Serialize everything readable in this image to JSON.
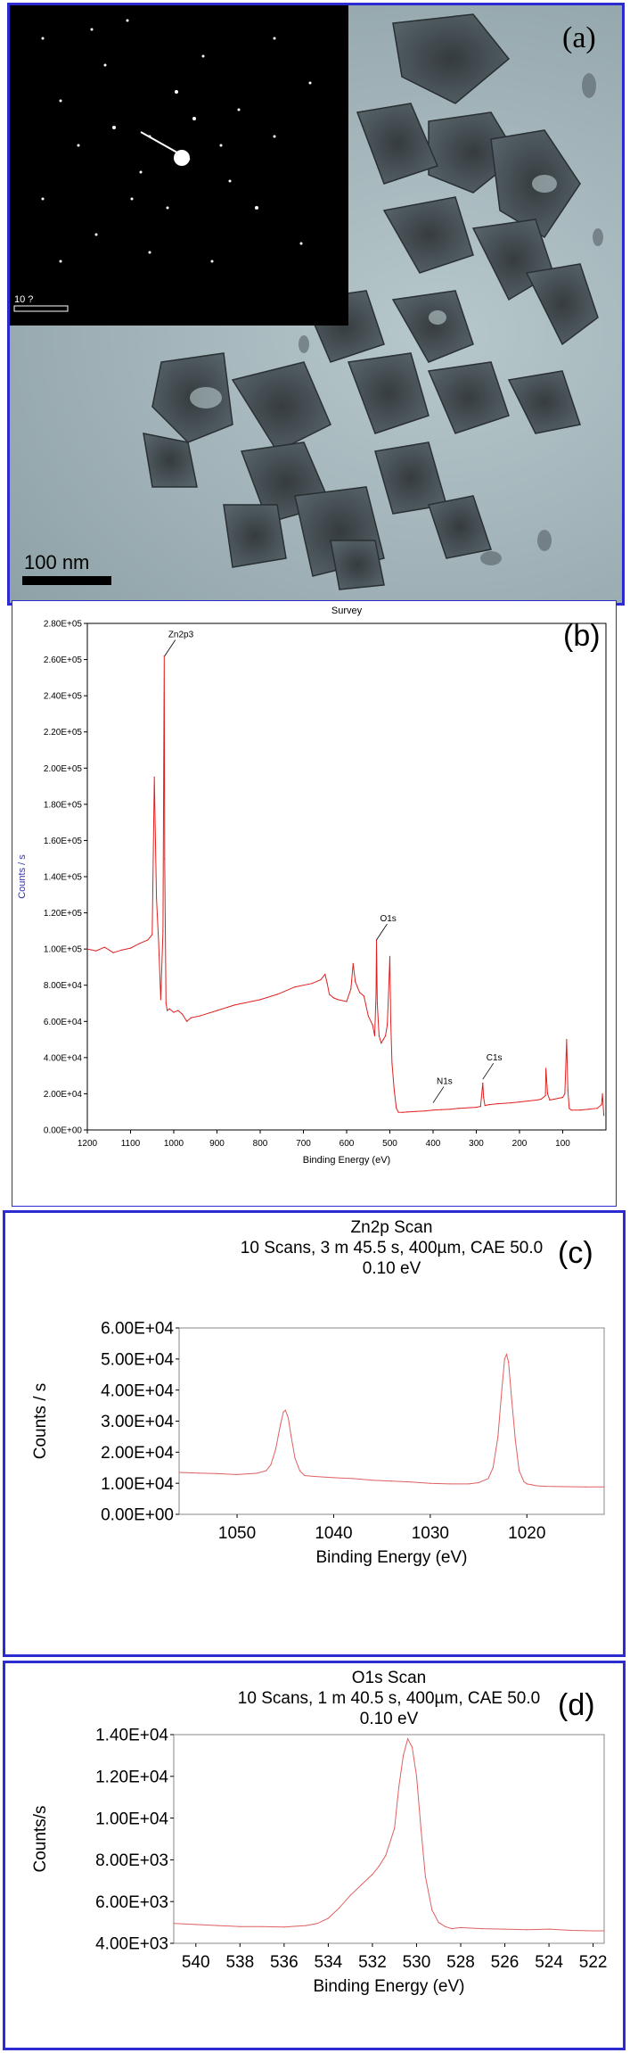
{
  "panel_a": {
    "label": "(a)",
    "scale_bar": "100 nm",
    "inset_scale": "10 ?"
  },
  "colors": {
    "border": "#2b2bd0",
    "trace": "#e02020",
    "trace_light": "#e06060"
  },
  "chart_data": [
    {
      "type": "line",
      "panel_label": "(b)",
      "title": "Survey",
      "xlabel": "Binding Energy (eV)",
      "ylabel": "Counts / s",
      "xlim": [
        1200,
        0
      ],
      "ylim": [
        0,
        280000
      ],
      "x_ticks": [
        "1200",
        "1100",
        "1000",
        "900",
        "800",
        "700",
        "600",
        "500",
        "400",
        "300",
        "200",
        "100"
      ],
      "y_ticks": [
        "0.00E+00",
        "2.00E+04",
        "4.00E+04",
        "6.00E+04",
        "8.00E+04",
        "1.00E+05",
        "1.20E+05",
        "1.40E+05",
        "1.60E+05",
        "1.80E+05",
        "2.00E+05",
        "2.20E+05",
        "2.40E+05",
        "2.60E+05",
        "2.80E+05"
      ],
      "annotations": [
        {
          "text": "Zn2p3",
          "x": 1021,
          "y": 262000
        },
        {
          "text": "O1s",
          "x": 531,
          "y": 105000
        },
        {
          "text": "N1s",
          "x": 400,
          "y": 15000
        },
        {
          "text": "C1s",
          "x": 285,
          "y": 28000
        }
      ],
      "series": [
        {
          "x": [
            1200,
            1180,
            1160,
            1140,
            1120,
            1100,
            1080,
            1060,
            1050,
            1045,
            1040,
            1035,
            1030,
            1025,
            1022,
            1021,
            1018,
            1015,
            1010,
            1000,
            990,
            980,
            970,
            960,
            940,
            900,
            860,
            800,
            760,
            720,
            680,
            660,
            650,
            645,
            640,
            630,
            620,
            600,
            590,
            585,
            580,
            575,
            570,
            560,
            550,
            540,
            535,
            532,
            531,
            529,
            525,
            520,
            515,
            510,
            506,
            503,
            500,
            498,
            495,
            490,
            485,
            480,
            470,
            460,
            440,
            420,
            400,
            380,
            360,
            340,
            300,
            290,
            285,
            283,
            280,
            270,
            250,
            220,
            200,
            180,
            160,
            150,
            140,
            139,
            135,
            130,
            120,
            100,
            95,
            91,
            88,
            85,
            80,
            60,
            40,
            20,
            10,
            8,
            5
          ],
          "y": [
            100000,
            99000,
            101000,
            98000,
            99500,
            100500,
            103000,
            105000,
            108000,
            195000,
            128000,
            104000,
            72000,
            110000,
            262000,
            150000,
            70000,
            66000,
            67000,
            65000,
            66000,
            64000,
            60000,
            62000,
            63000,
            66000,
            69000,
            72000,
            75000,
            79000,
            81000,
            83000,
            86000,
            81000,
            75000,
            73000,
            72000,
            71000,
            78000,
            92000,
            82000,
            79000,
            76000,
            74000,
            63000,
            58000,
            52000,
            75000,
            105000,
            70000,
            52000,
            48000,
            50000,
            52000,
            58000,
            75000,
            96000,
            60000,
            37000,
            22000,
            12000,
            9800,
            9700,
            9900,
            10200,
            10500,
            11000,
            11200,
            11500,
            12000,
            12500,
            13000,
            26000,
            18000,
            13500,
            14000,
            14500,
            15000,
            15500,
            16000,
            16500,
            17000,
            19000,
            34000,
            20000,
            16500,
            17000,
            18000,
            20000,
            50000,
            22000,
            12000,
            11000,
            11000,
            11500,
            12000,
            14000,
            20000,
            8000
          ]
        }
      ]
    },
    {
      "type": "line",
      "panel_label": "(c)",
      "title": "Zn2p Scan",
      "subtitle": "10 Scans,  3 m 45.5 s,  400µm,  CAE 50.0",
      "subtitle2": "0.10 eV",
      "xlabel": "Binding Energy (eV)",
      "ylabel": "Counts / s",
      "xlim": [
        1056,
        1012
      ],
      "ylim": [
        0,
        60000
      ],
      "x_ticks": [
        "1050",
        "1040",
        "1030",
        "1020"
      ],
      "x_tick_values": [
        1050,
        1040,
        1030,
        1020
      ],
      "y_ticks": [
        "0.00E+00",
        "1.00E+04",
        "2.00E+04",
        "3.00E+04",
        "4.00E+04",
        "5.00E+04",
        "6.00E+04"
      ],
      "series": [
        {
          "x": [
            1056,
            1054,
            1052,
            1050,
            1048,
            1047,
            1046.5,
            1046,
            1045.5,
            1045.2,
            1045,
            1044.7,
            1044.4,
            1044,
            1043.5,
            1043,
            1042,
            1040,
            1038,
            1036,
            1034,
            1032,
            1030,
            1028,
            1026,
            1025,
            1024,
            1023.5,
            1023,
            1022.6,
            1022.3,
            1022.1,
            1021.9,
            1021.6,
            1021.2,
            1020.8,
            1020.3,
            1020,
            1019.5,
            1019,
            1018,
            1016,
            1014,
            1012
          ],
          "y": [
            13500,
            13300,
            13100,
            12800,
            13200,
            14000,
            16000,
            21000,
            29000,
            33000,
            33500,
            31000,
            25000,
            18000,
            14000,
            12500,
            12200,
            11800,
            11500,
            11000,
            10700,
            10400,
            10000,
            9800,
            9800,
            10200,
            11500,
            15000,
            25000,
            40000,
            50000,
            51500,
            49000,
            38000,
            24000,
            14000,
            10500,
            9800,
            9500,
            9200,
            9000,
            8900,
            8800,
            8800
          ]
        }
      ]
    },
    {
      "type": "line",
      "panel_label": "(d)",
      "title": "O1s Scan",
      "subtitle": "10 Scans,  1 m 40.5 s,  400µm,  CAE 50.0",
      "subtitle2": "0.10 eV",
      "xlabel": "Binding Energy (eV)",
      "ylabel": "Counts/s",
      "xlim": [
        541,
        521.5
      ],
      "ylim": [
        4000,
        14000
      ],
      "x_ticks": [
        "540",
        "538",
        "536",
        "534",
        "532",
        "530",
        "528",
        "526",
        "524",
        "522"
      ],
      "x_tick_values": [
        540,
        538,
        536,
        534,
        532,
        530,
        528,
        526,
        524,
        522
      ],
      "y_ticks": [
        "4.00E+03",
        "6.00E+03",
        "8.00E+03",
        "1.00E+04",
        "1.20E+04",
        "1.40E+04"
      ],
      "series": [
        {
          "x": [
            541,
            540,
            539,
            538,
            537,
            536,
            535,
            534.5,
            534,
            533.5,
            533,
            532.5,
            532,
            531.7,
            531.4,
            531,
            530.8,
            530.6,
            530.4,
            530.2,
            530,
            529.8,
            529.6,
            529.3,
            529,
            528.7,
            528.4,
            528,
            527,
            526,
            525,
            524,
            523,
            522,
            521.5
          ],
          "y": [
            4950,
            4900,
            4850,
            4800,
            4800,
            4780,
            4850,
            4950,
            5200,
            5700,
            6300,
            6800,
            7300,
            7700,
            8200,
            9500,
            11500,
            13000,
            13800,
            13400,
            12000,
            9500,
            7200,
            5600,
            5000,
            4800,
            4700,
            4750,
            4700,
            4680,
            4650,
            4680,
            4620,
            4600,
            4600
          ]
        }
      ]
    }
  ]
}
